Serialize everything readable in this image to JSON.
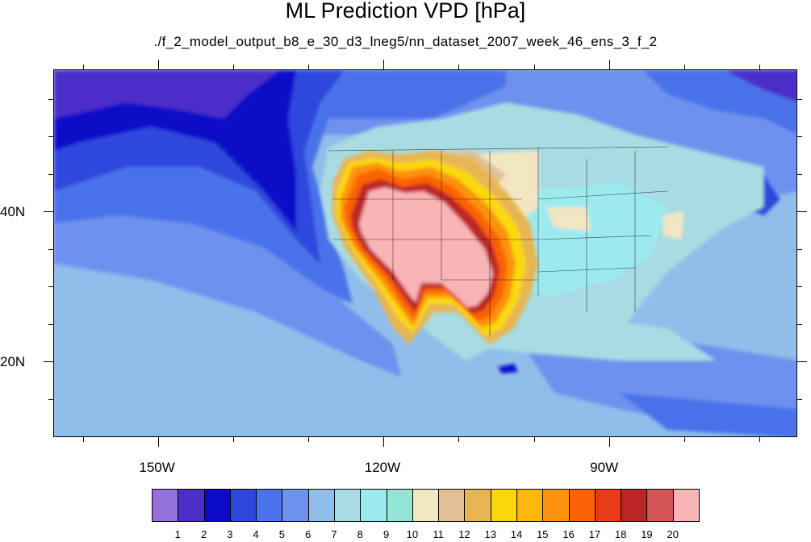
{
  "title": "ML Prediction VPD [hPa]",
  "subtitle": "./f_2_model_output_b8_e_30_d3_lneg5/nn_dataset_2007_week_46_ens_3_f_2",
  "map": {
    "lon_range": [
      -164,
      -65
    ],
    "lat_range": [
      10,
      59
    ],
    "lon_ticks": [
      {
        "value": -150,
        "label": "150W"
      },
      {
        "value": -120,
        "label": "120W"
      },
      {
        "value": -90,
        "label": "90W"
      }
    ],
    "lat_ticks": [
      {
        "value": 40,
        "label": "40N"
      },
      {
        "value": 20,
        "label": "20N"
      }
    ],
    "minor_lon_ticks": [
      -160,
      -140,
      -130,
      -110,
      -100,
      -80,
      -70
    ],
    "minor_lat_ticks": [
      15,
      25,
      30,
      35,
      45,
      50,
      55
    ]
  },
  "colorbar": {
    "labels": [
      "1",
      "2",
      "3",
      "4",
      "5",
      "6",
      "7",
      "8",
      "9",
      "10",
      "11",
      "12",
      "13",
      "14",
      "15",
      "16",
      "17",
      "18",
      "19",
      "20"
    ],
    "colors": [
      "#9370db",
      "#4b2fc9",
      "#0a0ac8",
      "#2e46dc",
      "#4a72ea",
      "#6e91ee",
      "#8fbeeb",
      "#a8dbe2",
      "#9ceaf0",
      "#93e6d6",
      "#f3e6c2",
      "#e1c193",
      "#e7b653",
      "#fbd80a",
      "#feb80c",
      "#fc920d",
      "#fb6205",
      "#e93a1a",
      "#bc2526",
      "#d55556",
      "#f9b4b6"
    ]
  }
}
